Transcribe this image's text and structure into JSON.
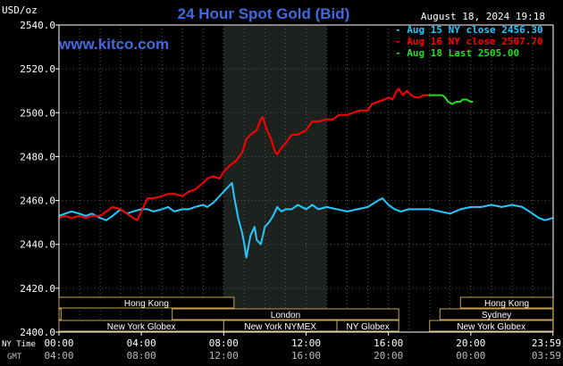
{
  "chart_data": {
    "type": "line",
    "title": "24 Hour Spot Gold (Bid)",
    "watermark": "www.kitco.com",
    "timestamp": "August 18, 2024 19:18",
    "y_unit": "USD/oz",
    "ylim": [
      2400,
      2540
    ],
    "y_ticks": [
      "2540.0",
      "2520.0",
      "2500.0",
      "2480.0",
      "2460.0",
      "2440.0",
      "2420.0",
      "2400.0"
    ],
    "x_axis_label_ny": "NY Time",
    "x_axis_label_gmt": "GMT",
    "x_ticks_ny": [
      "00:00",
      "04:00",
      "08:00",
      "12:00",
      "16:00",
      "20:00",
      "23:59"
    ],
    "x_ticks_gmt": [
      "04:00",
      "08:00",
      "12:00",
      "16:00",
      "20:00",
      "00:00",
      "03:59"
    ],
    "grid": true,
    "legend_position": "top-right",
    "colors": {
      "background": "#000000",
      "plot_border": "#ffffff",
      "grid": "#555555",
      "highlight": "#1e221e",
      "title": "#4169e1",
      "watermark": "#4169e1",
      "text": "#ffffff",
      "muted": "#bbbbbb",
      "session_border": "#c8a250"
    },
    "highlight_period_hours": [
      8,
      13
    ],
    "series": [
      {
        "name": "Aug 15 NY close 2456.30",
        "color": "#22c8ff",
        "points": [
          [
            0,
            2453
          ],
          [
            0.3,
            2454
          ],
          [
            0.6,
            2455
          ],
          [
            1,
            2454
          ],
          [
            1.3,
            2453
          ],
          [
            1.6,
            2454
          ],
          [
            2,
            2452
          ],
          [
            2.3,
            2451
          ],
          [
            2.6,
            2453
          ],
          [
            3,
            2456
          ],
          [
            3.3,
            2454
          ],
          [
            3.6,
            2455
          ],
          [
            4,
            2456
          ],
          [
            4.3,
            2456
          ],
          [
            4.6,
            2455
          ],
          [
            5,
            2456
          ],
          [
            5.3,
            2457
          ],
          [
            5.6,
            2455
          ],
          [
            6,
            2456
          ],
          [
            6.3,
            2456
          ],
          [
            6.6,
            2457
          ],
          [
            7,
            2458
          ],
          [
            7.2,
            2457
          ],
          [
            7.5,
            2459
          ],
          [
            7.8,
            2462
          ],
          [
            8,
            2464
          ],
          [
            8.2,
            2466
          ],
          [
            8.4,
            2468
          ],
          [
            8.5,
            2462
          ],
          [
            8.7,
            2452
          ],
          [
            8.9,
            2445
          ],
          [
            9,
            2440
          ],
          [
            9.1,
            2434
          ],
          [
            9.3,
            2444
          ],
          [
            9.5,
            2448
          ],
          [
            9.6,
            2442
          ],
          [
            9.8,
            2440
          ],
          [
            10,
            2448
          ],
          [
            10.2,
            2450
          ],
          [
            10.4,
            2453
          ],
          [
            10.6,
            2457
          ],
          [
            10.8,
            2455
          ],
          [
            11,
            2456
          ],
          [
            11.3,
            2456
          ],
          [
            11.6,
            2458
          ],
          [
            12,
            2456
          ],
          [
            12.3,
            2458
          ],
          [
            12.6,
            2456
          ],
          [
            13,
            2457
          ],
          [
            13.5,
            2456
          ],
          [
            14,
            2455
          ],
          [
            14.5,
            2456
          ],
          [
            15,
            2457
          ],
          [
            15.5,
            2460
          ],
          [
            15.7,
            2461
          ],
          [
            16,
            2458
          ],
          [
            16.3,
            2456
          ],
          [
            16.6,
            2455
          ],
          [
            17,
            2456
          ],
          [
            17.5,
            2456
          ],
          [
            18,
            2456
          ],
          [
            18.5,
            2455
          ],
          [
            19,
            2454
          ],
          [
            19.5,
            2456
          ],
          [
            20,
            2457
          ],
          [
            20.5,
            2457
          ],
          [
            21,
            2458
          ],
          [
            21.5,
            2457
          ],
          [
            22,
            2458
          ],
          [
            22.5,
            2457
          ],
          [
            23,
            2454
          ],
          [
            23.3,
            2452
          ],
          [
            23.6,
            2451
          ],
          [
            23.98,
            2452
          ]
        ]
      },
      {
        "name": "Aug 16 NY close 2507.70",
        "color": "#ff0000",
        "points": [
          [
            0,
            2452
          ],
          [
            0.3,
            2453
          ],
          [
            0.6,
            2452
          ],
          [
            1,
            2453
          ],
          [
            1.3,
            2452
          ],
          [
            1.6,
            2453
          ],
          [
            2,
            2453
          ],
          [
            2.3,
            2455
          ],
          [
            2.6,
            2457
          ],
          [
            3,
            2456
          ],
          [
            3.3,
            2454
          ],
          [
            3.6,
            2452
          ],
          [
            3.8,
            2451
          ],
          [
            4,
            2455
          ],
          [
            4.3,
            2461
          ],
          [
            4.6,
            2461
          ],
          [
            5,
            2462
          ],
          [
            5.3,
            2463
          ],
          [
            5.6,
            2463
          ],
          [
            6,
            2462
          ],
          [
            6.3,
            2464
          ],
          [
            6.6,
            2465
          ],
          [
            7,
            2468
          ],
          [
            7.2,
            2470
          ],
          [
            7.5,
            2471
          ],
          [
            7.8,
            2470
          ],
          [
            8,
            2473
          ],
          [
            8.3,
            2476
          ],
          [
            8.6,
            2478
          ],
          [
            8.9,
            2482
          ],
          [
            9.1,
            2488
          ],
          [
            9.3,
            2490
          ],
          [
            9.6,
            2492
          ],
          [
            9.8,
            2497
          ],
          [
            9.9,
            2498
          ],
          [
            10.1,
            2492
          ],
          [
            10.3,
            2488
          ],
          [
            10.5,
            2482
          ],
          [
            10.6,
            2481
          ],
          [
            10.8,
            2484
          ],
          [
            11,
            2486
          ],
          [
            11.3,
            2490
          ],
          [
            11.6,
            2490
          ],
          [
            12,
            2492
          ],
          [
            12.3,
            2496
          ],
          [
            12.6,
            2496
          ],
          [
            13,
            2497
          ],
          [
            13.3,
            2497
          ],
          [
            13.6,
            2499
          ],
          [
            14,
            2499
          ],
          [
            14.3,
            2500
          ],
          [
            14.6,
            2501
          ],
          [
            15,
            2501
          ],
          [
            15.2,
            2504
          ],
          [
            15.5,
            2505
          ],
          [
            15.8,
            2506
          ],
          [
            16,
            2507
          ],
          [
            16.2,
            2506
          ],
          [
            16.4,
            2510
          ],
          [
            16.5,
            2511
          ],
          [
            16.7,
            2508
          ],
          [
            16.9,
            2510
          ],
          [
            17.1,
            2508
          ],
          [
            17.3,
            2507
          ],
          [
            17.5,
            2507
          ],
          [
            17.7,
            2508
          ],
          [
            17.95,
            2508
          ]
        ]
      },
      {
        "name": "Aug 18 Last 2505.00",
        "color": "#22dd22",
        "points": [
          [
            17.95,
            2508
          ],
          [
            18.3,
            2508
          ],
          [
            18.6,
            2508
          ],
          [
            18.75,
            2507
          ],
          [
            18.9,
            2505
          ],
          [
            19.1,
            2504
          ],
          [
            19.3,
            2505
          ],
          [
            19.5,
            2505
          ],
          [
            19.6,
            2506
          ],
          [
            19.8,
            2506
          ],
          [
            20,
            2505
          ],
          [
            20.1,
            2505
          ]
        ]
      }
    ],
    "sessions": [
      {
        "name": "Hong Kong",
        "row": 0,
        "start": 0,
        "end": 8.5
      },
      {
        "name": "London",
        "row": 1,
        "start": 0,
        "end": 0.1,
        "offstart": true
      },
      {
        "name": "London",
        "row": 1,
        "start": 5.5,
        "end": 16.5
      },
      {
        "name": "New York Globex",
        "row": 2,
        "start": 0,
        "end": 8
      },
      {
        "name": "New York NYMEX",
        "row": 2,
        "start": 8,
        "end": 13.5
      },
      {
        "name": "NY Globex",
        "row": 2,
        "start": 13.5,
        "end": 16.5
      },
      {
        "name": "Hong Kong",
        "row": 0,
        "start": 19.5,
        "end": 23.99
      },
      {
        "name": "Sydney",
        "row": 1,
        "start": 18.5,
        "end": 23.99
      },
      {
        "name": "New York Globex",
        "row": 2,
        "start": 18,
        "end": 23.99
      }
    ]
  }
}
